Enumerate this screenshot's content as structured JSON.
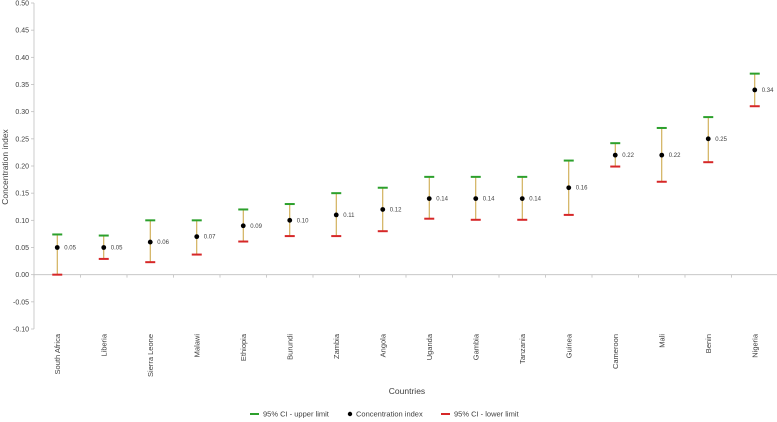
{
  "chart_data": {
    "type": "scatter",
    "title": "",
    "xlabel": "Countries",
    "ylabel": "Concentration index",
    "ylim": [
      -0.1,
      0.5
    ],
    "yticks": [
      "-0.10",
      "-0.05",
      "0.00",
      "0.05",
      "0.10",
      "0.15",
      "0.20",
      "0.25",
      "0.30",
      "0.35",
      "0.40",
      "0.45",
      "0.50"
    ],
    "categories": [
      "South Africa",
      "Liberia",
      "Sierra Leone",
      "Malawi",
      "Ethiopia",
      "Burundi",
      "Zambia",
      "Angola",
      "Uganda",
      "Gambia",
      "Tanzania",
      "Guinea",
      "Cameroon",
      "Mali",
      "Benin",
      "Nigeria"
    ],
    "series": [
      {
        "name": "95% CI - upper limit",
        "values": [
          0.074,
          0.072,
          0.1,
          0.1,
          0.12,
          0.13,
          0.15,
          0.16,
          0.18,
          0.18,
          0.18,
          0.21,
          0.242,
          0.27,
          0.29,
          0.37
        ]
      },
      {
        "name": "Concentration index",
        "values": [
          0.05,
          0.05,
          0.06,
          0.07,
          0.09,
          0.1,
          0.11,
          0.12,
          0.14,
          0.14,
          0.14,
          0.16,
          0.22,
          0.22,
          0.25,
          0.34
        ]
      },
      {
        "name": "95% CI - lower limit",
        "values": [
          0.0,
          0.029,
          0.023,
          0.037,
          0.061,
          0.071,
          0.071,
          0.08,
          0.103,
          0.101,
          0.101,
          0.11,
          0.199,
          0.171,
          0.207,
          0.31
        ]
      }
    ],
    "data_labels": [
      "0.05",
      "0.05",
      "0.06",
      "0.07",
      "0.09",
      "0.10",
      "0.11",
      "0.12",
      "0.14",
      "0.14",
      "0.14",
      "0.16",
      "0.22",
      "0.22",
      "0.25",
      "0.34"
    ],
    "colors": {
      "upper": "#2ca02c",
      "point": "#000000",
      "lower": "#d62728",
      "whisker": "#c8a03a"
    },
    "grid": false,
    "legend_position": "bottom"
  }
}
